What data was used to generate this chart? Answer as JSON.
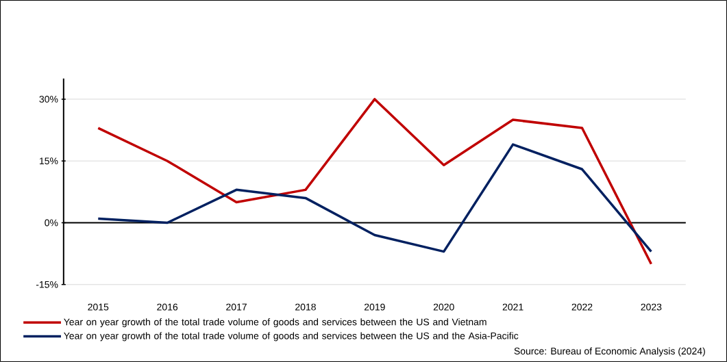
{
  "chart_data": {
    "type": "line",
    "categories": [
      "2015",
      "2016",
      "2017",
      "2018",
      "2019",
      "2020",
      "2021",
      "2022",
      "2023"
    ],
    "series": [
      {
        "name": "Year on year growth of the total trade volume of goods and services between the US and Vietnam",
        "color": "#c00000",
        "values": [
          23,
          15,
          5,
          8,
          30,
          14,
          25,
          23,
          -10
        ]
      },
      {
        "name": "Year on year growth of the total trade volume of goods and services between the US and the Asia-Pacific",
        "color": "#002060",
        "values": [
          1,
          0,
          8,
          6,
          -3,
          -7,
          19,
          13,
          -7
        ]
      }
    ],
    "ylim": [
      -15,
      35
    ],
    "yticks": [
      {
        "value": -15,
        "label": "-15%"
      },
      {
        "value": 0,
        "label": "0%"
      },
      {
        "value": 15,
        "label": "15%"
      },
      {
        "value": 30,
        "label": "30%"
      }
    ],
    "grid": "y",
    "legend": "bottom",
    "marker": "none",
    "line_style": "solid",
    "annotations": [
      "Source: Bureau of Economic Analysis (2024)"
    ]
  }
}
